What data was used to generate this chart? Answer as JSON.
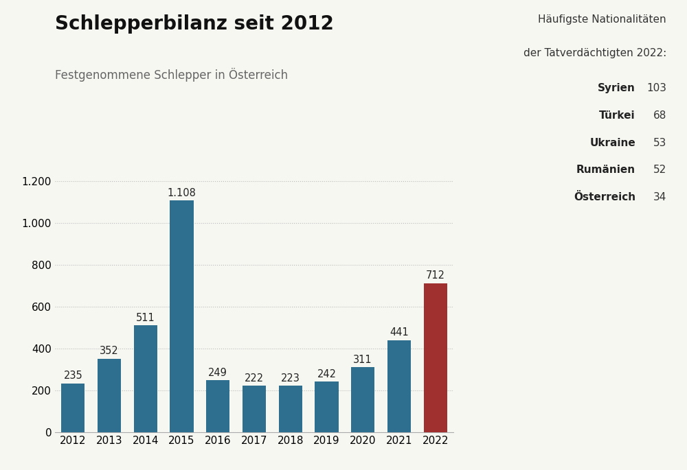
{
  "title": "Schlepperbilanz seit 2012",
  "subtitle": "Festgenommene Schlepper in Österreich",
  "years": [
    2012,
    2013,
    2014,
    2015,
    2016,
    2017,
    2018,
    2019,
    2020,
    2021,
    2022
  ],
  "values": [
    235,
    352,
    511,
    1108,
    249,
    222,
    223,
    242,
    311,
    441,
    712
  ],
  "bar_colors": [
    "#2e6e8e",
    "#2e6e8e",
    "#2e6e8e",
    "#2e6e8e",
    "#2e6e8e",
    "#2e6e8e",
    "#2e6e8e",
    "#2e6e8e",
    "#2e6e8e",
    "#2e6e8e",
    "#a03030"
  ],
  "ylim": [
    0,
    1280
  ],
  "yticks": [
    0,
    200,
    400,
    600,
    800,
    1000,
    1200
  ],
  "background_color": "#f7f7f2",
  "grid_color": "#bbbbbb",
  "annotation_color": "#222222",
  "title_fontsize": 20,
  "subtitle_fontsize": 12,
  "tick_fontsize": 11,
  "value_fontsize": 10.5,
  "legend_title_line1": "Häufigste Nationalitäten",
  "legend_title_line2": "der Tatverdächtigten 2022:",
  "legend_entries": [
    {
      "label": "Syrien",
      "value": "103"
    },
    {
      "label": "Türkei",
      "value": "68"
    },
    {
      "label": "Ukraine",
      "value": "53"
    },
    {
      "label": "Rumänien",
      "value": "52"
    },
    {
      "label": "Österreich",
      "value": "34"
    }
  ],
  "value_labels": [
    "235",
    "352",
    "511",
    "1.108",
    "249",
    "222",
    "223",
    "242",
    "311",
    "441",
    "712"
  ]
}
